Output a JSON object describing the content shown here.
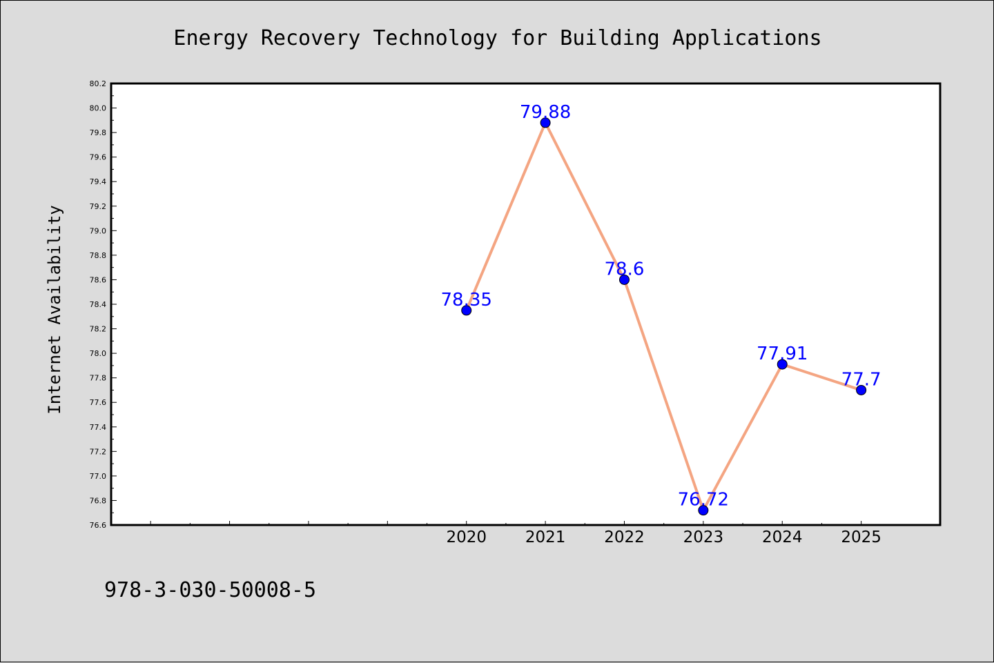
{
  "chart_data": {
    "type": "line",
    "title": "Energy Recovery Technology for Building Applications",
    "xlabel": "",
    "ylabel": "Internet Availability",
    "x": [
      2020,
      2021,
      2022,
      2023,
      2024,
      2025
    ],
    "values": [
      78.35,
      79.88,
      78.6,
      76.72,
      77.91,
      77.7
    ],
    "data_labels": [
      "78.35",
      "79.88",
      "78.6",
      "76.72",
      "77.91",
      "77.7"
    ],
    "x_tick_labels": [
      "2020",
      "2021",
      "2022",
      "2023",
      "2024",
      "2025"
    ],
    "xlim": [
      2015.5,
      2026
    ],
    "ylim": [
      76.6,
      80.2
    ],
    "y_ticks": [
      "76.6",
      "76.8",
      "77.0",
      "77.2",
      "77.4",
      "77.6",
      "77.8",
      "78.0",
      "78.2",
      "78.4",
      "78.6",
      "78.8",
      "79.0",
      "79.2",
      "79.4",
      "79.6",
      "79.8",
      "80.0",
      "80.2"
    ],
    "grid": false,
    "line_color": "#f4a582",
    "marker_color": "#0000ff",
    "label_color": "#0000ff",
    "background_color": "#dcdcdc",
    "plot_background": "#ffffff"
  },
  "footer": {
    "isbn": "978-3-030-50008-5"
  }
}
